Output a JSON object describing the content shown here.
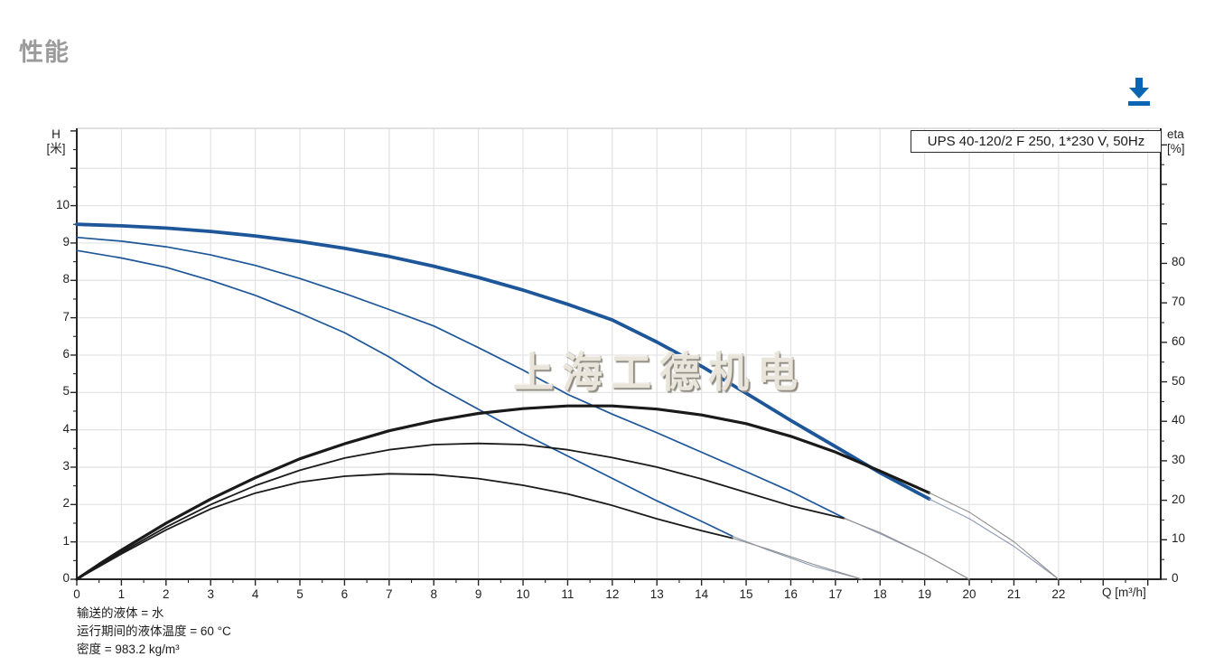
{
  "page": {
    "title": "性能"
  },
  "toolbar": {
    "download_tooltip": "下载",
    "accent_color": "#0a66b2"
  },
  "chart": {
    "series_label": "UPS 40-120/2 F 250, 1*230 V, 50Hz",
    "watermark": "上海工德机电",
    "axes": {
      "left": {
        "name": "H",
        "unit": "[米]",
        "tick_labels": [
          0,
          1,
          2,
          3,
          4,
          5,
          6,
          7,
          8,
          9,
          10
        ]
      },
      "right": {
        "name": "eta",
        "unit": "[%]",
        "tick_labels": [
          0,
          10,
          20,
          30,
          40,
          50,
          60,
          70,
          80
        ]
      },
      "bottom": {
        "title": "Q [m³/h]",
        "tick_labels": [
          0,
          1,
          2,
          3,
          4,
          5,
          6,
          7,
          8,
          9,
          10,
          11,
          12,
          13,
          14,
          15,
          16,
          17,
          18,
          19,
          20,
          21,
          22
        ]
      }
    },
    "footnotes": [
      "输送的液体 = 水",
      "运行期间的液体温度 = 60 °C",
      "密度 = 983.2 kg/m³"
    ],
    "colors": {
      "curve_blue": "#1d5699",
      "curve_black": "#1a1a1a",
      "extension_blue": "#8e9cb8",
      "extension_gray": "#8f8f8f",
      "grid": "#e2e2e2",
      "axis": "#262626",
      "frame_top": "#cfcfcf",
      "title_gray": "#9b9b9b",
      "download_blue": "#0a66b2"
    }
  },
  "chart_data": {
    "type": "line",
    "title": "UPS 40-120/2 F 250, 1*230 V, 50Hz",
    "xlabel": "Q [m³/h]",
    "ylabel_left": "H [米]",
    "ylabel_right": "eta [%]",
    "xlim": [
      0,
      24.29
    ],
    "ylim_left": [
      0,
      12.07
    ],
    "ylim_right": [
      0,
      114.2
    ],
    "grid": true,
    "legend_position": "none",
    "series": [
      {
        "name": "head-speed3",
        "axis": "H",
        "style": "solid-thick",
        "color": "#1d5699",
        "width": 3.8,
        "points": [
          [
            0,
            9.5
          ],
          [
            1,
            9.46
          ],
          [
            2,
            9.4
          ],
          [
            3,
            9.31
          ],
          [
            4,
            9.19
          ],
          [
            5,
            9.04
          ],
          [
            6,
            8.86
          ],
          [
            7,
            8.64
          ],
          [
            8,
            8.38
          ],
          [
            9,
            8.08
          ],
          [
            10,
            7.74
          ],
          [
            11,
            7.36
          ],
          [
            12,
            6.94
          ],
          [
            13,
            6.35
          ],
          [
            14,
            5.7
          ],
          [
            15,
            4.98
          ],
          [
            16,
            4.25
          ],
          [
            17,
            3.55
          ],
          [
            18,
            2.85
          ],
          [
            19.1,
            2.15
          ]
        ]
      },
      {
        "name": "head-speed3-extension",
        "axis": "H",
        "style": "thin-extension",
        "color": "#8e9cb8",
        "width": 1.1,
        "points": [
          [
            19.1,
            2.15
          ],
          [
            20,
            1.62
          ],
          [
            21,
            0.88
          ],
          [
            22,
            0
          ]
        ]
      },
      {
        "name": "head-speed2",
        "axis": "H",
        "style": "solid",
        "color": "#1d5699",
        "width": 1.7,
        "points": [
          [
            0,
            9.15
          ],
          [
            1,
            9.05
          ],
          [
            2,
            8.9
          ],
          [
            3,
            8.68
          ],
          [
            4,
            8.4
          ],
          [
            5,
            8.05
          ],
          [
            6,
            7.65
          ],
          [
            7,
            7.22
          ],
          [
            8,
            6.78
          ],
          [
            9,
            6.2
          ],
          [
            10,
            5.6
          ],
          [
            11,
            4.95
          ],
          [
            12,
            4.42
          ],
          [
            13,
            3.92
          ],
          [
            14,
            3.4
          ],
          [
            15,
            2.88
          ],
          [
            16,
            2.35
          ],
          [
            17.2,
            1.64
          ]
        ]
      },
      {
        "name": "head-speed2-extension",
        "axis": "H",
        "style": "thin-extension",
        "color": "#8e9cb8",
        "width": 1.1,
        "points": [
          [
            17.2,
            1.64
          ],
          [
            18,
            1.22
          ],
          [
            19,
            0.66
          ],
          [
            20,
            0
          ]
        ]
      },
      {
        "name": "head-speed1",
        "axis": "H",
        "style": "solid",
        "color": "#1d5699",
        "width": 1.7,
        "points": [
          [
            0,
            8.8
          ],
          [
            1,
            8.6
          ],
          [
            2,
            8.35
          ],
          [
            3,
            8.0
          ],
          [
            4,
            7.6
          ],
          [
            5,
            7.12
          ],
          [
            6,
            6.6
          ],
          [
            7,
            5.95
          ],
          [
            8,
            5.2
          ],
          [
            9,
            4.55
          ],
          [
            10,
            3.9
          ],
          [
            11,
            3.3
          ],
          [
            12,
            2.7
          ],
          [
            13,
            2.1
          ],
          [
            14,
            1.55
          ],
          [
            14.7,
            1.15
          ]
        ]
      },
      {
        "name": "head-speed1-extension",
        "axis": "H",
        "style": "thin-extension",
        "color": "#8e9cb8",
        "width": 1.1,
        "points": [
          [
            14.7,
            1.15
          ],
          [
            15.5,
            0.78
          ],
          [
            16.5,
            0.35
          ],
          [
            17.6,
            0
          ]
        ]
      },
      {
        "name": "eta-speed3",
        "axis": "eta",
        "style": "solid-thick",
        "color": "#1a1a1a",
        "width": 3.2,
        "points": [
          [
            0,
            0
          ],
          [
            0.5,
            3.8
          ],
          [
            1,
            7.4
          ],
          [
            2,
            14.2
          ],
          [
            3,
            20.3
          ],
          [
            4,
            25.7
          ],
          [
            5,
            30.5
          ],
          [
            6,
            34.3
          ],
          [
            7,
            37.6
          ],
          [
            8,
            40.1
          ],
          [
            9,
            42.0
          ],
          [
            10,
            43.2
          ],
          [
            11,
            43.9
          ],
          [
            12,
            43.9
          ],
          [
            13,
            43.1
          ],
          [
            14,
            41.6
          ],
          [
            15,
            39.4
          ],
          [
            16,
            36.2
          ],
          [
            17,
            32.2
          ],
          [
            18,
            27.4
          ],
          [
            19.1,
            21.9
          ]
        ]
      },
      {
        "name": "eta-speed3-extension",
        "axis": "eta",
        "style": "thin-extension",
        "color": "#8f8f8f",
        "width": 1.1,
        "points": [
          [
            19.1,
            21.9
          ],
          [
            20,
            17.0
          ],
          [
            21,
            9.5
          ],
          [
            22,
            0
          ]
        ]
      },
      {
        "name": "eta-speed2",
        "axis": "eta",
        "style": "solid",
        "color": "#1a1a1a",
        "width": 1.8,
        "points": [
          [
            0,
            0
          ],
          [
            1,
            6.8
          ],
          [
            2,
            13.2
          ],
          [
            3,
            18.9
          ],
          [
            4,
            23.7
          ],
          [
            5,
            27.6
          ],
          [
            6,
            30.7
          ],
          [
            7,
            32.8
          ],
          [
            8,
            34.1
          ],
          [
            9,
            34.4
          ],
          [
            10,
            34.1
          ],
          [
            11,
            32.8
          ],
          [
            12,
            30.8
          ],
          [
            13,
            28.4
          ],
          [
            14,
            25.4
          ],
          [
            15,
            22.0
          ],
          [
            16,
            18.6
          ],
          [
            17.2,
            15.4
          ]
        ]
      },
      {
        "name": "eta-speed2-extension",
        "axis": "eta",
        "style": "thin-extension",
        "color": "#8f8f8f",
        "width": 1.1,
        "points": [
          [
            17.2,
            15.4
          ],
          [
            18,
            11.8
          ],
          [
            19,
            6.3
          ],
          [
            20,
            0
          ]
        ]
      },
      {
        "name": "eta-speed1",
        "axis": "eta",
        "style": "solid",
        "color": "#1a1a1a",
        "width": 1.8,
        "points": [
          [
            0,
            0
          ],
          [
            1,
            6.4
          ],
          [
            2,
            12.5
          ],
          [
            3,
            17.8
          ],
          [
            4,
            21.8
          ],
          [
            5,
            24.6
          ],
          [
            6,
            26.1
          ],
          [
            7,
            26.7
          ],
          [
            8,
            26.5
          ],
          [
            9,
            25.5
          ],
          [
            10,
            23.8
          ],
          [
            11,
            21.6
          ],
          [
            12,
            18.7
          ],
          [
            13,
            15.3
          ],
          [
            14,
            12.3
          ],
          [
            14.7,
            10.4
          ]
        ]
      },
      {
        "name": "eta-speed1-extension",
        "axis": "eta",
        "style": "thin-extension",
        "color": "#8f8f8f",
        "width": 1.1,
        "points": [
          [
            14.7,
            10.4
          ],
          [
            15.5,
            7.6
          ],
          [
            16.5,
            3.8
          ],
          [
            17.6,
            0
          ]
        ]
      }
    ]
  }
}
